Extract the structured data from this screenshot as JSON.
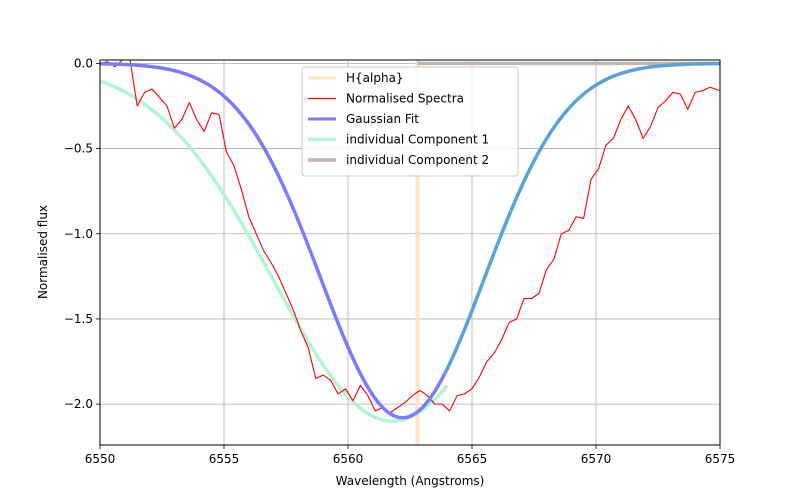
{
  "chart_data": {
    "type": "line",
    "title": "",
    "xlabel": "Wavelength (Angstroms)",
    "ylabel": "Normalised flux",
    "xlim": [
      6550,
      6575
    ],
    "ylim": [
      -2.24,
      0.02
    ],
    "xticks": [
      6550,
      6555,
      6560,
      6565,
      6570,
      6575
    ],
    "xtick_labels": [
      "6550",
      "6555",
      "6560",
      "6565",
      "6570",
      "6575"
    ],
    "yticks": [
      0.0,
      -0.5,
      -1.0,
      -1.5,
      -2.0
    ],
    "ytick_labels": [
      "0.0",
      "−0.5",
      "−1.0",
      "−1.5",
      "−2.0"
    ],
    "grid": true,
    "legend_position": "top-center",
    "series": [
      {
        "name": "H{alpha}",
        "kind": "vline",
        "x_value": 6562.8,
        "color": "#ffe5c4"
      },
      {
        "name": "Normalised Spectra",
        "kind": "points",
        "color": "#ff0000",
        "x": [
          6550.0,
          6550.3,
          6550.6,
          6550.9,
          6551.2,
          6551.5,
          6551.8,
          6552.1,
          6552.4,
          6552.7,
          6553.0,
          6553.3,
          6553.6,
          6553.9,
          6554.2,
          6554.5,
          6554.8,
          6555.1,
          6555.4,
          6555.7,
          6556.0,
          6556.3,
          6556.6,
          6556.9,
          6557.2,
          6557.5,
          6557.8,
          6558.1,
          6558.4,
          6558.7,
          6559.0,
          6559.3,
          6559.6,
          6559.9,
          6560.2,
          6560.5,
          6560.8,
          6561.1,
          6561.4,
          6561.7,
          6562.0,
          6562.3,
          6562.6,
          6562.9,
          6563.2,
          6563.5,
          6563.8,
          6564.1,
          6564.4,
          6564.7,
          6565.0,
          6565.3,
          6565.6,
          6565.9,
          6566.2,
          6566.5,
          6566.8,
          6567.1,
          6567.4,
          6567.7,
          6568.0,
          6568.3,
          6568.6,
          6568.9,
          6569.2,
          6569.5,
          6569.8,
          6570.1,
          6570.4,
          6570.7,
          6571.0,
          6571.3,
          6571.6,
          6571.9,
          6572.2,
          6572.5,
          6572.8,
          6573.1,
          6573.4,
          6573.7,
          6574.0,
          6574.3,
          6574.6,
          6575.0
        ],
        "y": [
          0.0,
          0.01,
          -0.02,
          0.02,
          0.03,
          -0.25,
          -0.17,
          -0.15,
          -0.2,
          -0.25,
          -0.38,
          -0.33,
          -0.23,
          -0.33,
          -0.4,
          -0.29,
          -0.3,
          -0.52,
          -0.6,
          -0.74,
          -0.9,
          -1.0,
          -1.1,
          -1.17,
          -1.25,
          -1.35,
          -1.45,
          -1.57,
          -1.67,
          -1.85,
          -1.83,
          -1.86,
          -1.94,
          -1.91,
          -1.98,
          -1.89,
          -1.95,
          -2.04,
          -2.02,
          -2.05,
          -2.02,
          -1.99,
          -1.95,
          -1.92,
          -1.95,
          -2.0,
          -2.0,
          -2.04,
          -1.95,
          -1.94,
          -1.91,
          -1.84,
          -1.75,
          -1.7,
          -1.62,
          -1.52,
          -1.5,
          -1.38,
          -1.38,
          -1.35,
          -1.21,
          -1.15,
          -1.0,
          -0.98,
          -0.9,
          -0.91,
          -0.68,
          -0.62,
          -0.48,
          -0.44,
          -0.33,
          -0.25,
          -0.33,
          -0.44,
          -0.37,
          -0.26,
          -0.22,
          -0.17,
          -0.18,
          -0.27,
          -0.17,
          -0.16,
          -0.14,
          -0.16
        ]
      },
      {
        "name": "Gaussian Fit",
        "kind": "function",
        "color": "#7b7bff",
        "color_alt": "#5aa2d8",
        "color_switch_x": 6563.9,
        "amplitude": -2.08,
        "center": 6562.2,
        "sigma": 3.3
      },
      {
        "name": "individual Component 1",
        "kind": "function",
        "color": "#b4f5d4",
        "amplitude": -2.1,
        "center": 6561.8,
        "sigma": 4.8,
        "x_start": 6550,
        "x_end": 6564.0
      },
      {
        "name": "individual Component 2",
        "kind": "hline",
        "color": "#c4b4b0",
        "y_value": 0.0,
        "x_start": 6562.8,
        "x_end": 6575
      }
    ]
  }
}
